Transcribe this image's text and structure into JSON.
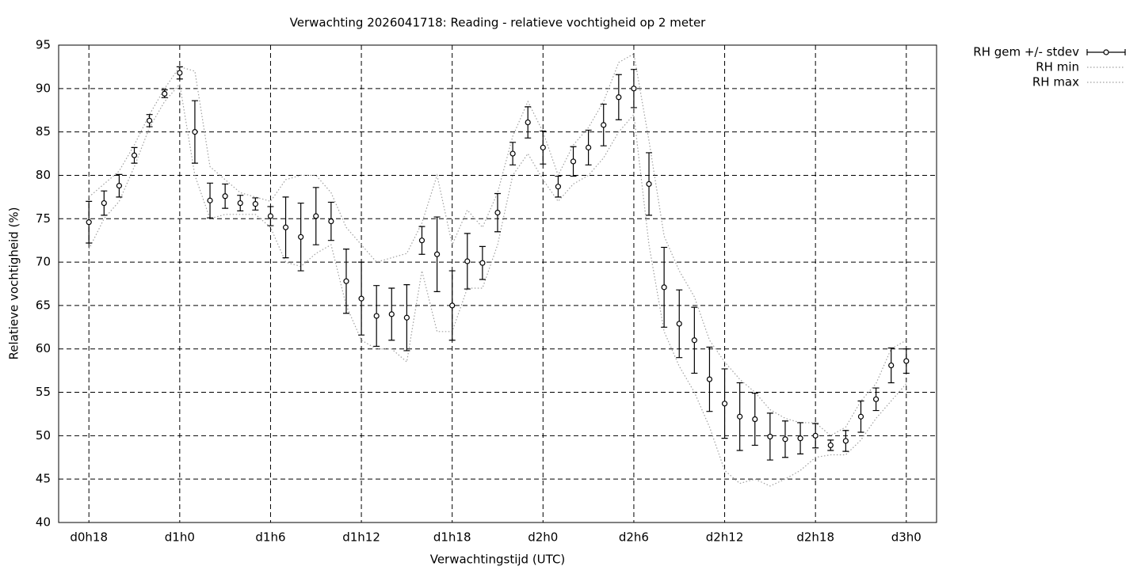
{
  "chart_data": {
    "type": "errorbar-line",
    "title": "Verwachting 2026041718: Reading - relatieve vochtigheid op 2 meter",
    "x_label": "Verwachtingstijd (UTC)",
    "y_label": "Relatieve vochtigheid (%)",
    "x": [
      18,
      19,
      20,
      21,
      22,
      23,
      24,
      25,
      26,
      27,
      28,
      29,
      30,
      31,
      32,
      33,
      34,
      35,
      36,
      37,
      38,
      39,
      40,
      41,
      42,
      43,
      44,
      45,
      46,
      47,
      48,
      49,
      50,
      51,
      52,
      53,
      54,
      55,
      56,
      57,
      58,
      59,
      60,
      61,
      62,
      63,
      64,
      65,
      66,
      67,
      68,
      69,
      70,
      71,
      72
    ],
    "series": [
      {
        "name": "RH gem +/- stdev",
        "color": "#000000",
        "style": "errorbar",
        "values": [
          74.6,
          76.8,
          78.8,
          82.3,
          86.3,
          89.4,
          91.8,
          85.0,
          77.1,
          77.6,
          76.8,
          76.7,
          75.3,
          74.0,
          72.9,
          75.3,
          74.7,
          67.8,
          65.8,
          63.8,
          64.0,
          63.6,
          72.5,
          70.9,
          65.0,
          70.1,
          69.9,
          75.7,
          82.5,
          86.1,
          83.2,
          78.7,
          81.6,
          83.2,
          85.8,
          89.0,
          90.0,
          79.0,
          67.1,
          62.9,
          61.0,
          56.5,
          53.7,
          52.2,
          51.9,
          49.9,
          49.6,
          49.7,
          50.0,
          48.9,
          49.4,
          52.2,
          54.2,
          58.1,
          58.6
        ],
        "errors": [
          2.4,
          1.4,
          1.3,
          0.9,
          0.7,
          0.45,
          0.7,
          3.6,
          2.0,
          1.4,
          0.9,
          0.7,
          1.1,
          3.5,
          3.9,
          3.3,
          2.2,
          3.7,
          4.2,
          3.5,
          3.0,
          3.8,
          1.6,
          4.3,
          4.0,
          3.2,
          1.9,
          2.2,
          1.3,
          1.8,
          1.9,
          1.2,
          1.7,
          2.0,
          2.4,
          2.6,
          2.2,
          3.6,
          4.6,
          3.9,
          3.8,
          3.7,
          4.0,
          3.9,
          3.0,
          2.7,
          2.1,
          1.8,
          1.4,
          0.6,
          1.2,
          1.8,
          1.3,
          2.0,
          1.4
        ]
      },
      {
        "name": "RH min",
        "color": "#a0a0a0",
        "style": "dotted",
        "values": [
          71.5,
          75,
          77,
          81,
          85.5,
          88.5,
          90.5,
          80,
          75,
          75.5,
          75.5,
          75.5,
          74,
          70,
          69.5,
          71,
          72,
          65,
          61,
          60,
          60,
          58.5,
          69,
          62,
          62,
          67,
          67,
          72,
          80,
          82.5,
          79.5,
          77,
          79,
          80,
          82,
          85,
          87,
          72,
          62,
          58,
          55,
          51,
          46,
          44.5,
          45,
          44.2,
          45,
          46,
          47.5,
          47.8,
          47.8,
          49.5,
          52,
          54,
          56
        ]
      },
      {
        "name": "RH max",
        "color": "#a0a0a0",
        "style": "dotted",
        "values": [
          77.5,
          79,
          80.5,
          83.5,
          87,
          90,
          92.5,
          92,
          81,
          79.5,
          78,
          77.5,
          77,
          79.5,
          80,
          80,
          78,
          74,
          72,
          70,
          70.5,
          71,
          74.5,
          80,
          72,
          76,
          74,
          78,
          84.5,
          88.5,
          85,
          80,
          83.5,
          85.5,
          88.5,
          93,
          94,
          84,
          73,
          69,
          66,
          61,
          58.5,
          56.5,
          55,
          53,
          52,
          51.5,
          51.5,
          50,
          51,
          54,
          56,
          60,
          61
        ]
      }
    ],
    "xlim": [
      16,
      74
    ],
    "xticks": [
      {
        "value": 18,
        "label": "d0h18"
      },
      {
        "value": 24,
        "label": "d1h0"
      },
      {
        "value": 30,
        "label": "d1h6"
      },
      {
        "value": 36,
        "label": "d1h12"
      },
      {
        "value": 42,
        "label": "d1h18"
      },
      {
        "value": 48,
        "label": "d2h0"
      },
      {
        "value": 54,
        "label": "d2h6"
      },
      {
        "value": 60,
        "label": "d2h12"
      },
      {
        "value": 66,
        "label": "d2h18"
      },
      {
        "value": 72,
        "label": "d3h0"
      }
    ],
    "ylim": [
      40,
      95
    ],
    "yticks": [
      40,
      45,
      50,
      55,
      60,
      65,
      70,
      75,
      80,
      85,
      90,
      95
    ],
    "grid": true,
    "legend": "outside-right"
  }
}
